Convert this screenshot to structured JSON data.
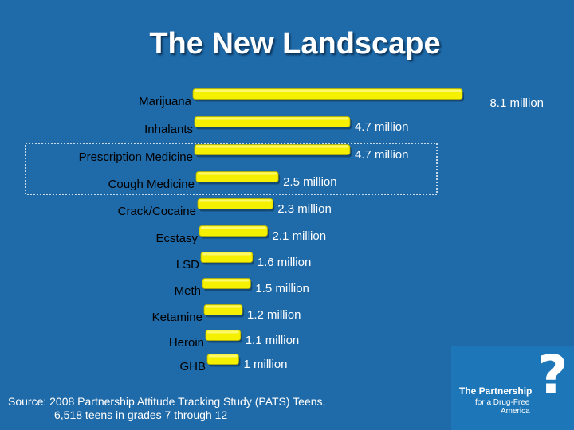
{
  "title": "The New Landscape",
  "chart_data": {
    "type": "bar",
    "orientation": "horizontal",
    "categories": [
      "Marijuana",
      "Inhalants",
      "Prescription Medicine",
      "Cough Medicine",
      "Crack/Cocaine",
      "Ecstasy",
      "LSD",
      "Meth",
      "Ketamine",
      "Heroin",
      "GHB"
    ],
    "values": [
      8.1,
      4.7,
      4.7,
      2.5,
      2.3,
      2.1,
      1.6,
      1.5,
      1.2,
      1.1,
      1.0
    ],
    "value_labels": [
      "8.1 million",
      "4.7 million",
      "4.7 million",
      "2.5 million",
      "2.3 million",
      "2.1 million",
      "1.6 million",
      "1.5 million",
      "1.2 million",
      "1.1 million",
      "1 million"
    ],
    "unit": "million",
    "highlighted": [
      "Prescription Medicine",
      "Cough Medicine"
    ],
    "bar_color": "#f5f000",
    "xlim": [
      0,
      8.1
    ]
  },
  "source": {
    "line1": "Source:  2008 Partnership Attitude Tracking Study (PATS) Teens,",
    "line2": "6,518 teens in grades 7 through 12"
  },
  "logo": {
    "mark": "?",
    "name": "The Partnership",
    "tagline1": "for a Drug-Free",
    "tagline2": "America"
  }
}
